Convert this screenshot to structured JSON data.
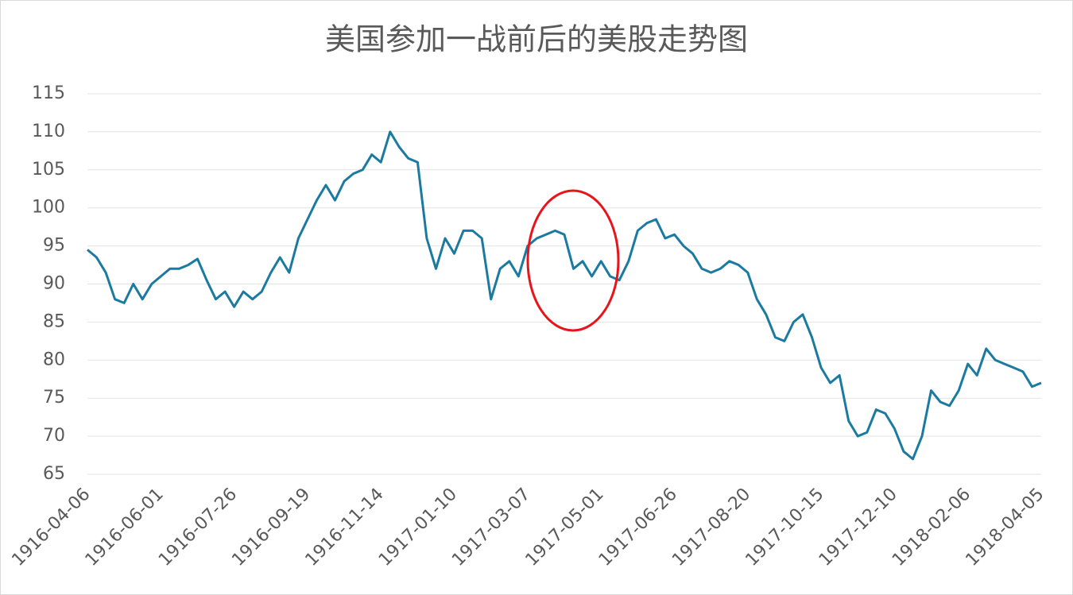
{
  "chart_data": {
    "type": "line",
    "title": "美国参加一战前后的美股走势图",
    "categories": [
      "1916-04-06",
      null,
      null,
      null,
      null,
      null,
      null,
      null,
      "1916-06-01",
      null,
      null,
      null,
      null,
      null,
      null,
      null,
      "1916-07-26",
      null,
      null,
      null,
      null,
      null,
      null,
      null,
      "1916-09-19",
      null,
      null,
      null,
      null,
      null,
      null,
      null,
      "1916-11-14",
      null,
      null,
      null,
      null,
      null,
      null,
      null,
      "1917-01-10",
      null,
      null,
      null,
      null,
      null,
      null,
      null,
      "1917-03-07",
      null,
      null,
      null,
      null,
      null,
      null,
      null,
      "1917-05-01",
      null,
      null,
      null,
      null,
      null,
      null,
      null,
      "1917-06-26",
      null,
      null,
      null,
      null,
      null,
      null,
      null,
      "1917-08-20",
      null,
      null,
      null,
      null,
      null,
      null,
      null,
      "1917-10-15",
      null,
      null,
      null,
      null,
      null,
      null,
      null,
      "1917-12-10",
      null,
      null,
      null,
      null,
      null,
      null,
      null,
      "1918-02-06",
      null,
      null,
      null,
      null,
      null,
      null,
      null,
      "1918-04-05"
    ],
    "values": [
      94.5,
      93.5,
      91.5,
      88,
      87.5,
      90,
      88,
      90,
      91,
      92,
      92,
      92.5,
      93.3,
      90.5,
      88,
      89,
      87,
      89,
      88,
      89,
      91.5,
      93.5,
      91.5,
      96,
      98.5,
      101,
      103,
      101,
      103.5,
      104.5,
      105,
      107,
      106,
      110,
      108,
      106.5,
      106,
      96,
      92,
      96,
      94,
      97,
      97,
      96,
      88,
      92,
      93,
      91,
      95,
      96,
      96.5,
      97,
      96.5,
      92,
      93,
      91,
      93,
      91,
      90.5,
      93,
      97,
      98,
      98.5,
      96,
      96.5,
      95,
      94,
      92,
      91.5,
      92,
      93,
      92.5,
      91.5,
      88,
      86,
      83,
      82.5,
      85,
      86,
      83,
      79,
      77,
      78,
      72,
      70,
      70.5,
      73.5,
      73,
      71,
      68,
      67,
      70,
      76,
      74.5,
      74,
      76,
      79.5,
      78,
      81.5,
      80,
      79.5,
      79,
      78.5,
      76.5,
      77
    ],
    "color": "#1b7aa0",
    "ylim": [
      65,
      115
    ],
    "yticks": [
      65,
      70,
      75,
      80,
      85,
      90,
      95,
      100,
      105,
      110,
      115
    ],
    "grid": true
  }
}
